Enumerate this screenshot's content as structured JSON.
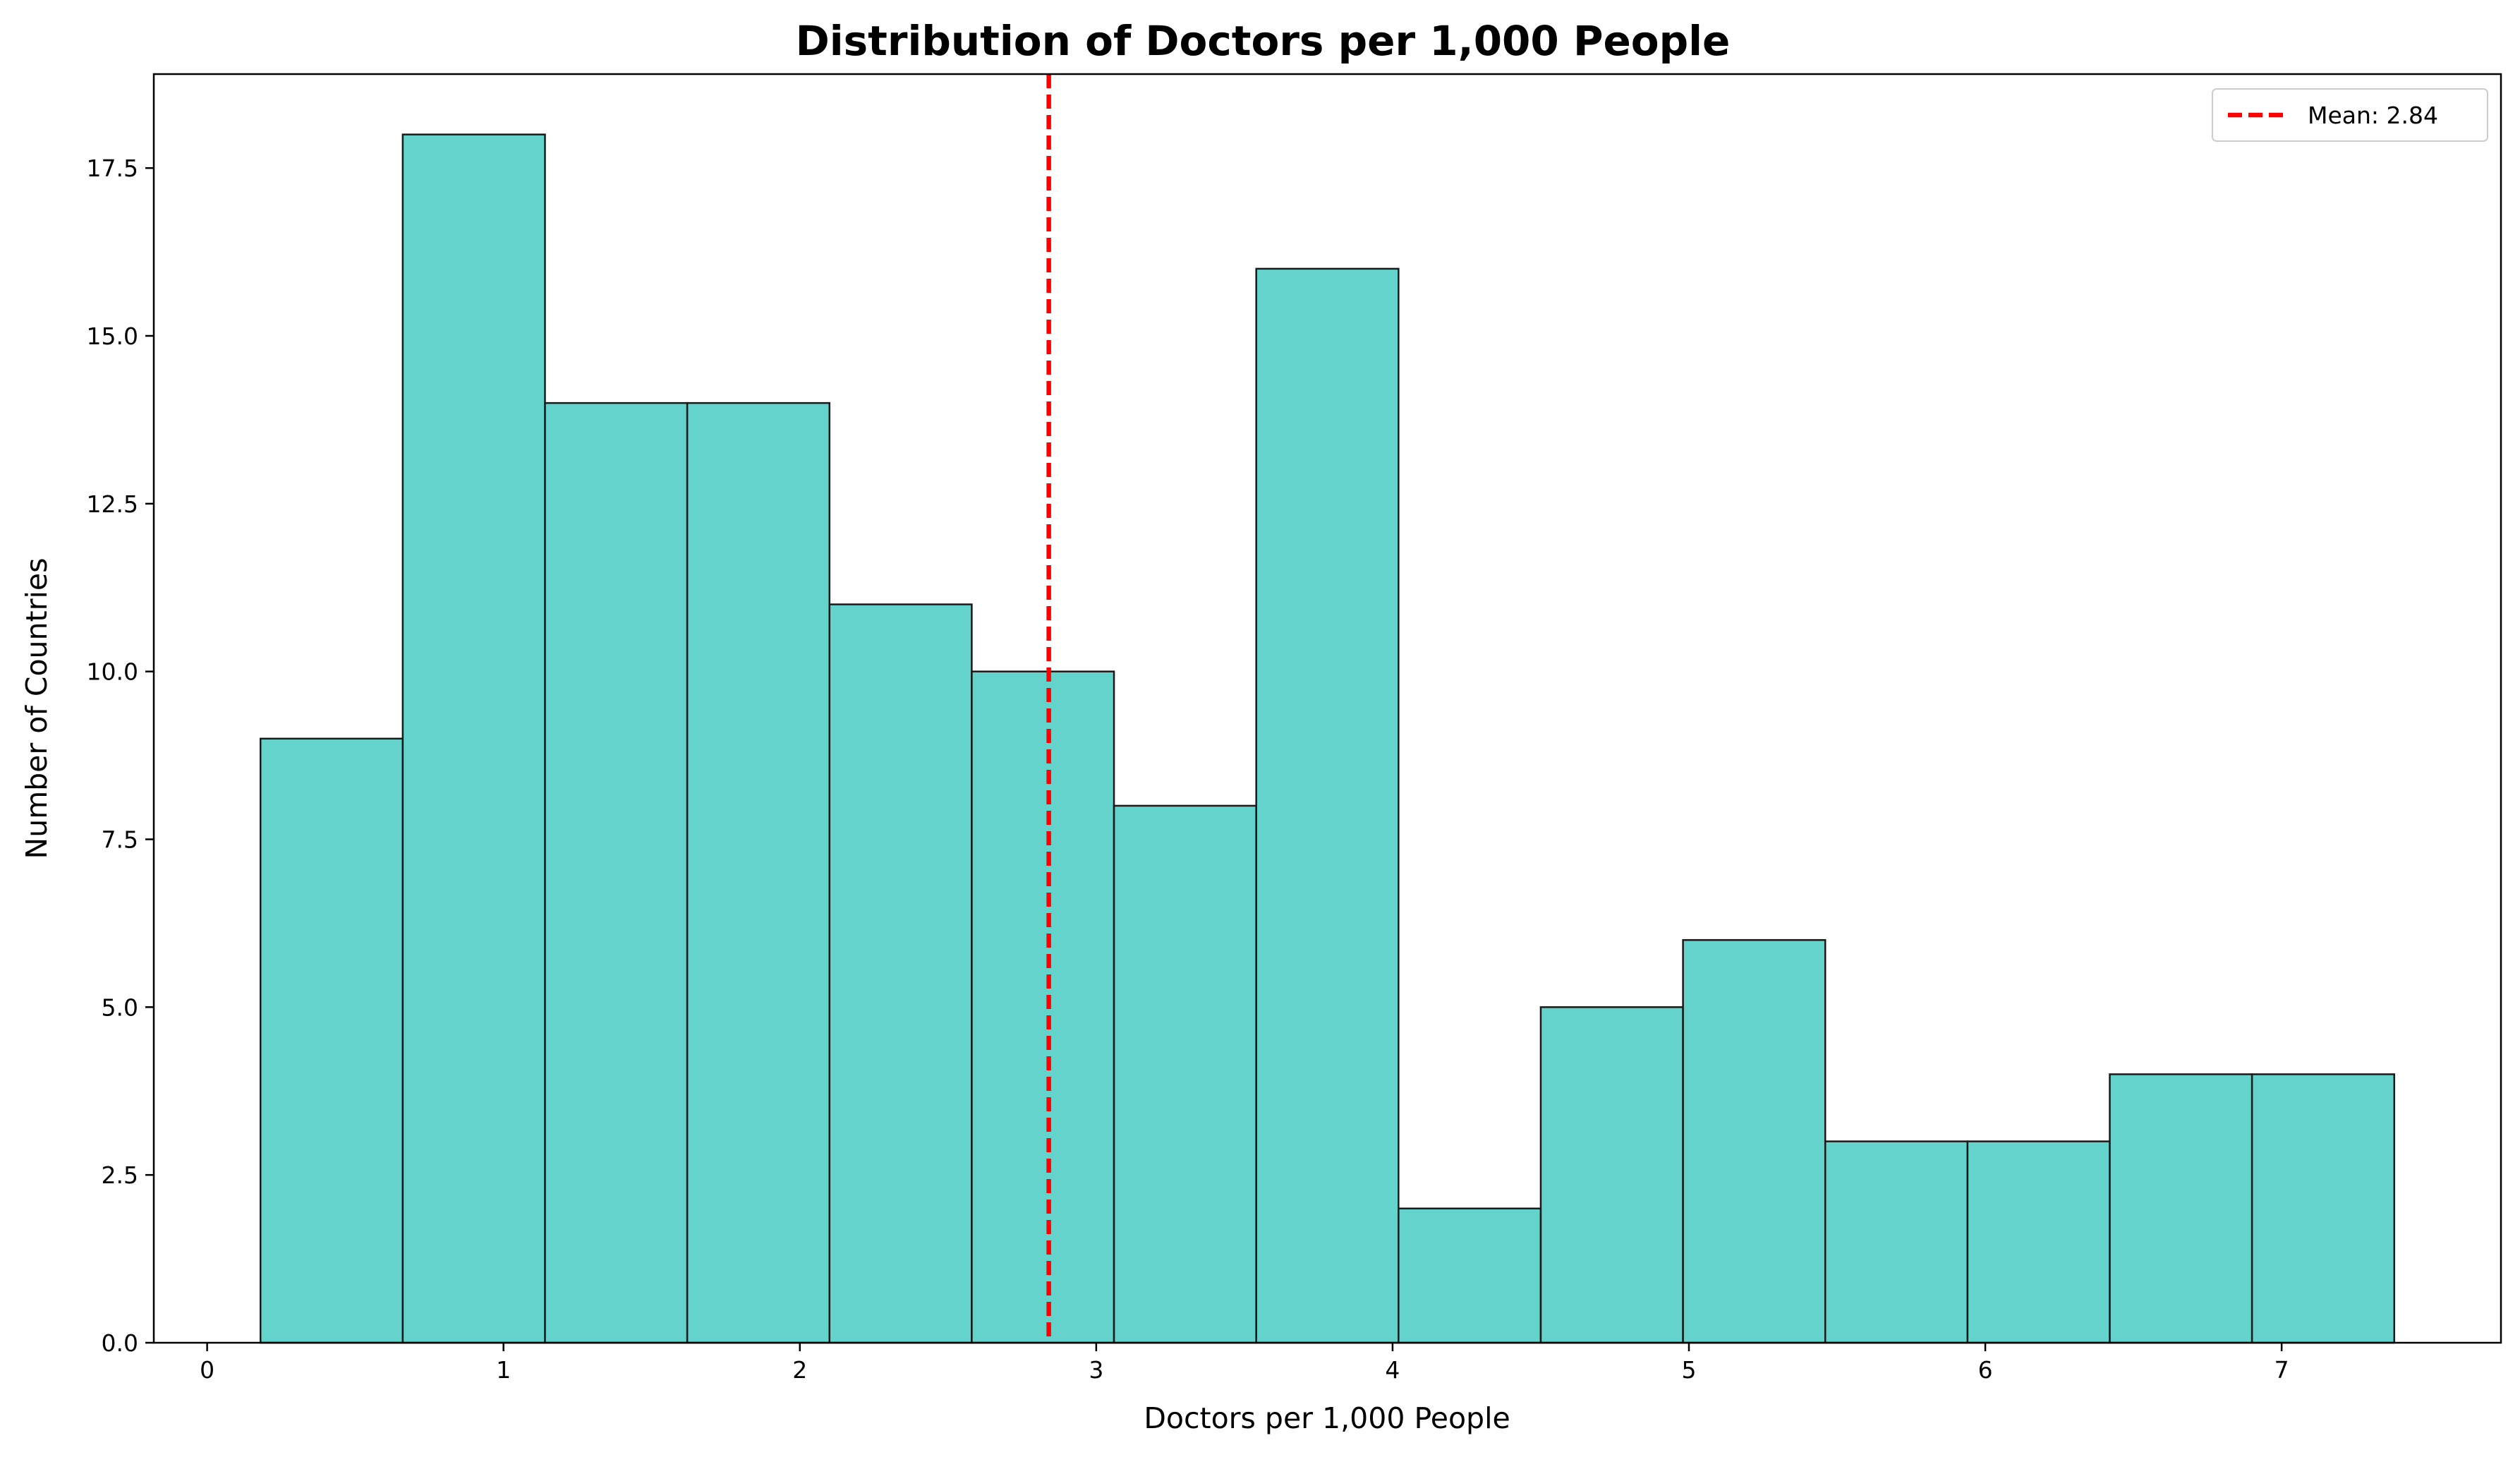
{
  "chart_data": {
    "type": "bar",
    "title": "Distribution of Doctors per 1,000 People",
    "xlabel": "Doctors per 1,000 People",
    "ylabel": "Number of Countries",
    "bin_edges": [
      0.18,
      0.66,
      1.14,
      1.62,
      2.1,
      2.58,
      3.06,
      3.54,
      4.02,
      4.5,
      4.98,
      5.46,
      5.94,
      6.42,
      6.9,
      7.38
    ],
    "counts": [
      9,
      18,
      14,
      14,
      11,
      10,
      8,
      16,
      2,
      5,
      6,
      3,
      3,
      4,
      4
    ],
    "mean": 2.84,
    "xlim": [
      -0.18,
      7.74
    ],
    "ylim": [
      0,
      18.9
    ],
    "xticks": [
      0,
      1,
      2,
      3,
      4,
      5,
      6,
      7
    ],
    "xtick_labels": [
      "0",
      "1",
      "2",
      "3",
      "4",
      "5",
      "6",
      "7"
    ],
    "yticks": [
      0,
      2.5,
      5,
      7.5,
      10,
      12.5,
      15,
      17.5
    ],
    "ytick_labels": [
      "0.0",
      "2.5",
      "5.0",
      "7.5",
      "10.0",
      "12.5",
      "15.0",
      "17.5"
    ],
    "legend": {
      "label": "Mean: 2.84",
      "placement": "top-right"
    },
    "grid": false,
    "colors": {
      "bar_fill": "#4ecdc4",
      "bar_edge": "#1a1a1a",
      "mean_line": "#ff0000"
    }
  }
}
